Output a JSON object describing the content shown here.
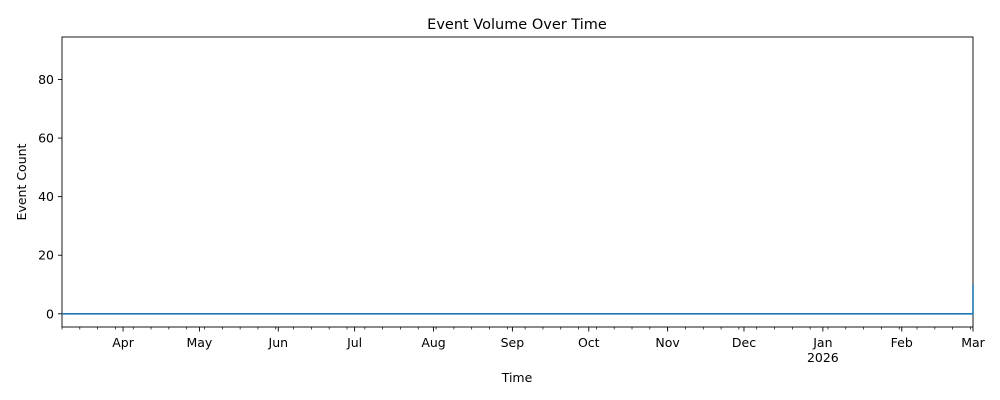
{
  "chart_data": {
    "type": "line",
    "title": "Event Volume Over Time",
    "xlabel": "Time",
    "ylabel": "Event Count",
    "x_range": [
      "2025-03-08",
      "2026-03-01"
    ],
    "ylim": [
      -4.5,
      94.5
    ],
    "y_ticks": [
      0,
      20,
      40,
      60,
      80
    ],
    "x_ticks": [
      {
        "date": "2025-04-01",
        "label": "Apr"
      },
      {
        "date": "2025-05-01",
        "label": "May"
      },
      {
        "date": "2025-06-01",
        "label": "Jun"
      },
      {
        "date": "2025-07-01",
        "label": "Jul"
      },
      {
        "date": "2025-08-01",
        "label": "Aug"
      },
      {
        "date": "2025-09-01",
        "label": "Sep"
      },
      {
        "date": "2025-10-01",
        "label": "Oct"
      },
      {
        "date": "2025-11-01",
        "label": "Nov"
      },
      {
        "date": "2025-12-01",
        "label": "Dec"
      },
      {
        "date": "2026-01-01",
        "label": "Jan",
        "sublabel": "2026"
      },
      {
        "date": "2026-02-01",
        "label": "Feb"
      },
      {
        "date": "2026-03-01",
        "label": "Mar"
      }
    ],
    "series": [
      {
        "name": "Event Count",
        "color": "#1f77b4",
        "points": [
          {
            "date": "2025-03-08",
            "value": 0
          },
          {
            "date": "2026-02-28",
            "value": 0
          },
          {
            "date": "2026-03-01",
            "value": 0
          },
          {
            "date": "2026-03-01",
            "value": 10
          }
        ]
      }
    ],
    "grid": false,
    "legend": "none"
  }
}
